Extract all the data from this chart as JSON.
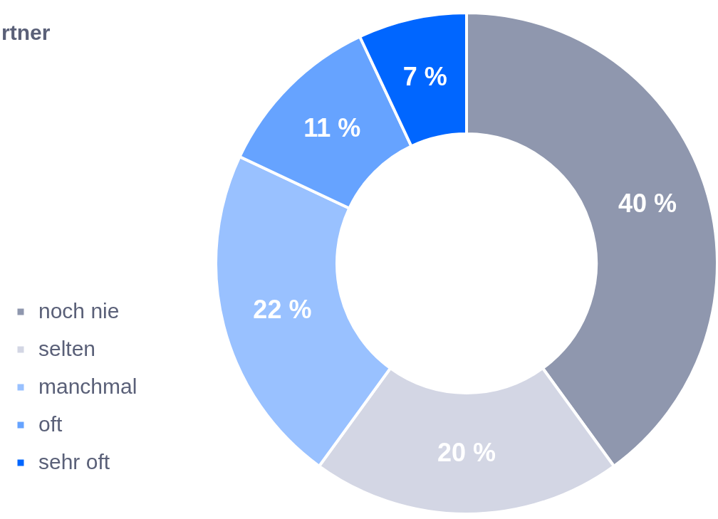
{
  "chart_data": {
    "type": "donut",
    "title": "rtner",
    "categories": [
      "noch nie",
      "selten",
      "manchmal",
      "oft",
      "sehr oft"
    ],
    "values": [
      40,
      20,
      22,
      11,
      7
    ],
    "colors": [
      "#8f97ae",
      "#d3d6e4",
      "#99c1ff",
      "#66a3ff",
      "#0066ff"
    ],
    "value_labels": [
      "40 %",
      "20 %",
      "22 %",
      "11 %",
      "7 %"
    ],
    "legend": "left"
  }
}
